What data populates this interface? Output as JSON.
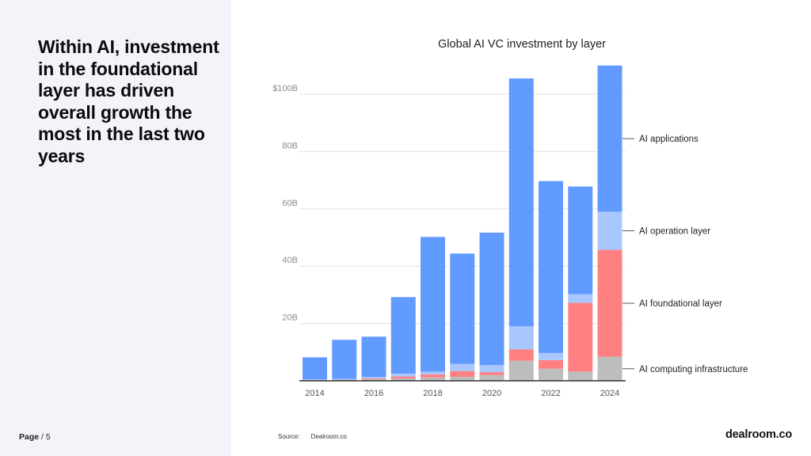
{
  "slide": {
    "headline": "Within AI, investment in the foundational layer has driven overall growth the most in the last two years",
    "page_label": "Page",
    "page_sep": "/",
    "page_number": "5",
    "source_label": "Source:",
    "source_value": "Dealroom.co",
    "logo": "dealroom.co"
  },
  "chart_data": {
    "type": "bar",
    "stacked": true,
    "title": "Global AI VC investment by layer",
    "x": [
      "2014",
      "2015",
      "2016",
      "2017",
      "2018",
      "2019",
      "2020",
      "2021",
      "2022",
      "2023",
      "2024"
    ],
    "x_tick_labels": [
      "2014",
      "",
      "2016",
      "",
      "2018",
      "",
      "2020",
      "",
      "2022",
      "",
      "2024"
    ],
    "y_ticks": [
      20,
      40,
      60,
      80,
      100
    ],
    "y_tick_labels": [
      "20B",
      "40B",
      "60B",
      "80B",
      "$100B"
    ],
    "ylim": [
      0,
      100
    ],
    "unit": "$B",
    "grid": true,
    "legend_placement": "right",
    "series": [
      {
        "name": "AI computing infrastructure",
        "color": "#bdbdbd",
        "values": [
          0.3,
          0.4,
          0.6,
          0.8,
          1.2,
          1.4,
          2.0,
          7.0,
          4.2,
          3.2,
          8.4
        ]
      },
      {
        "name": "AI foundational layer",
        "color": "#ff8080",
        "values": [
          0.0,
          0.0,
          0.3,
          0.7,
          1.0,
          2.0,
          1.0,
          4.0,
          3.0,
          24.0,
          37.3
        ]
      },
      {
        "name": "AI operation layer",
        "color": "#a9c7ff",
        "values": [
          0.2,
          0.3,
          0.4,
          1.0,
          1.0,
          2.5,
          2.5,
          8.0,
          2.5,
          3.0,
          13.3
        ]
      },
      {
        "name": "AI applications",
        "color": "#619bff",
        "values": [
          7.7,
          13.6,
          14.1,
          26.7,
          47.0,
          38.5,
          46.2,
          86.5,
          60.0,
          37.6,
          51.0
        ]
      }
    ]
  }
}
